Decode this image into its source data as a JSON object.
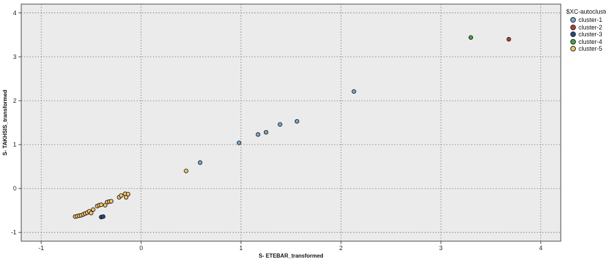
{
  "chart_data": {
    "type": "scatter",
    "xlabel": "S- ETEBAR_transformed",
    "ylabel": "S- TAKHSIS_transformed",
    "xlim": [
      -1.2,
      4.2
    ],
    "ylim": [
      -1.2,
      4.2
    ],
    "x_ticks": [
      -1,
      0,
      1,
      2,
      3,
      4
    ],
    "y_ticks": [
      -1,
      0,
      1,
      2,
      3,
      4
    ],
    "grid": true,
    "legend_position": "top-right",
    "legend_title": "$XC-autocluste",
    "series": [
      {
        "name": "cluster-1",
        "color": "#7fa7c9",
        "points": [
          [
            0.59,
            0.59
          ],
          [
            0.98,
            1.04
          ],
          [
            1.17,
            1.23
          ],
          [
            1.25,
            1.28
          ],
          [
            1.39,
            1.46
          ],
          [
            1.56,
            1.53
          ],
          [
            2.13,
            2.21
          ]
        ]
      },
      {
        "name": "cluster-2",
        "color": "#c0393f",
        "points": [
          [
            3.68,
            3.4
          ]
        ]
      },
      {
        "name": "cluster-3",
        "color": "#1b4e7e",
        "points": [
          [
            -0.4,
            -0.65
          ],
          [
            -0.38,
            -0.64
          ]
        ]
      },
      {
        "name": "cluster-4",
        "color": "#44a83b",
        "points": [
          [
            3.3,
            3.44
          ]
        ]
      },
      {
        "name": "cluster-5",
        "color": "#f7c46a",
        "points": [
          [
            -0.66,
            -0.64
          ],
          [
            -0.64,
            -0.63
          ],
          [
            -0.62,
            -0.62
          ],
          [
            -0.6,
            -0.61
          ],
          [
            -0.58,
            -0.59
          ],
          [
            -0.56,
            -0.57
          ],
          [
            -0.54,
            -0.55
          ],
          [
            -0.52,
            -0.52
          ],
          [
            -0.5,
            -0.56
          ],
          [
            -0.48,
            -0.48
          ],
          [
            -0.44,
            -0.4
          ],
          [
            -0.42,
            -0.38
          ],
          [
            -0.4,
            -0.37
          ],
          [
            -0.36,
            -0.38
          ],
          [
            -0.34,
            -0.31
          ],
          [
            -0.32,
            -0.3
          ],
          [
            -0.3,
            -0.29
          ],
          [
            -0.22,
            -0.2
          ],
          [
            -0.2,
            -0.16
          ],
          [
            -0.16,
            -0.12
          ],
          [
            -0.15,
            -0.2
          ],
          [
            -0.13,
            -0.13
          ],
          [
            0.45,
            0.4
          ]
        ]
      }
    ]
  }
}
